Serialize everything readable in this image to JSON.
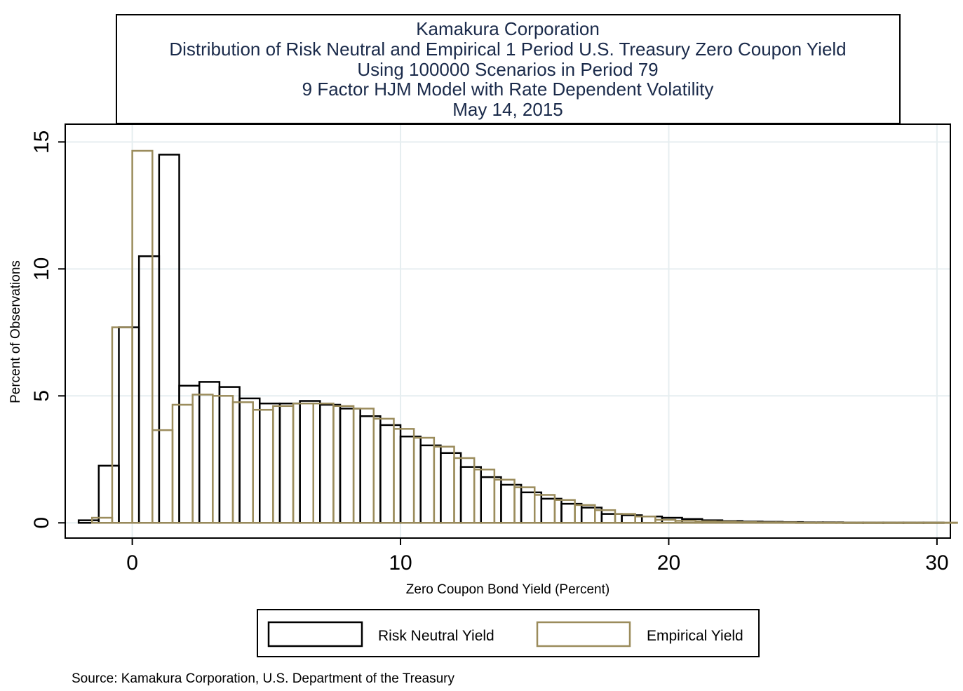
{
  "chart_data": {
    "type": "bar",
    "title": [
      "Kamakura Corporation",
      "Distribution of Risk Neutral and Empirical 1 Period U.S. Treasury Zero Coupon Yield",
      "Using 100000 Scenarios in Period 79",
      "9 Factor HJM Model with Rate Dependent Volatility",
      "May 14, 2015"
    ],
    "xlabel": "Zero Coupon Bond Yield (Percent)",
    "ylabel": "Percent of Observations",
    "xlim": [
      -2.5,
      30.5
    ],
    "ylim": [
      -0.6,
      15.7
    ],
    "xticks": [
      0,
      10,
      20,
      30
    ],
    "xtick_labels": [
      "0",
      "10",
      "20",
      "30"
    ],
    "yticks": [
      0,
      5,
      10,
      15
    ],
    "ytick_labels": [
      "0",
      "5",
      "10",
      "15"
    ],
    "grid": true,
    "legend_position": "bottom",
    "source": "Source: Kamakura Corporation, U.S. Department of the Treasury",
    "series": [
      {
        "name": "Risk Neutral Yield",
        "color": "#000000",
        "bin_start": -2.0,
        "bin_width": 0.75,
        "values": [
          0.1,
          2.25,
          7.7,
          10.5,
          14.5,
          5.4,
          5.55,
          5.35,
          4.9,
          4.7,
          4.7,
          4.8,
          4.65,
          4.5,
          4.2,
          3.85,
          3.4,
          3.05,
          2.75,
          2.2,
          1.8,
          1.5,
          1.2,
          0.95,
          0.75,
          0.6,
          0.35,
          0.3,
          0.25,
          0.2,
          0.15,
          0.1,
          0.07,
          0.05,
          0.04,
          0.03,
          0.02,
          0.02,
          0.01,
          0.01,
          0.01,
          0.01,
          0.01
        ]
      },
      {
        "name": "Empirical Yield",
        "color": "#9b8c5c",
        "bin_start": -1.5,
        "bin_width": 0.75,
        "values": [
          0.2,
          7.7,
          14.65,
          3.65,
          4.65,
          5.05,
          5.0,
          4.75,
          4.45,
          4.6,
          4.7,
          4.7,
          4.6,
          4.5,
          4.1,
          3.7,
          3.35,
          3.0,
          2.55,
          2.1,
          1.7,
          1.4,
          1.1,
          0.9,
          0.7,
          0.5,
          0.35,
          0.25,
          0.12,
          0.08,
          0.06,
          0.05,
          0.03,
          0.02,
          0.02,
          0.01,
          0.01,
          0.01,
          0.01,
          0.01,
          0.01,
          0.01,
          0.01
        ]
      }
    ]
  }
}
